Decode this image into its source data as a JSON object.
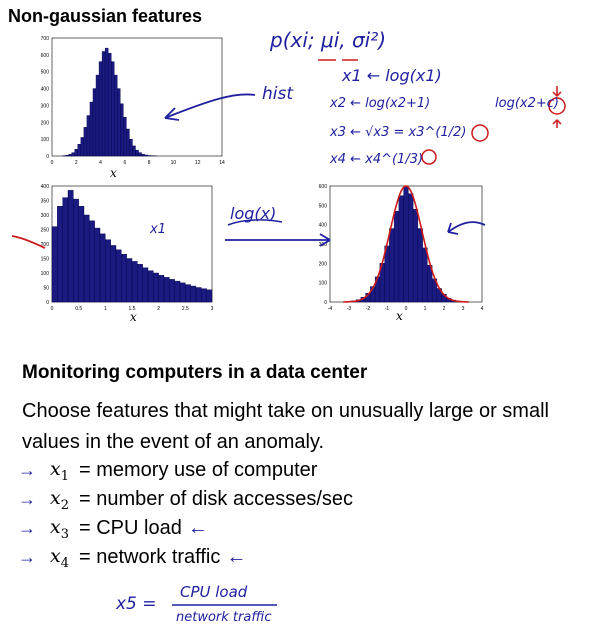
{
  "title": "Non-gaussian features",
  "charts": {
    "top": {
      "xlabel": "x",
      "yticks": [
        "700",
        "600",
        "500",
        "400",
        "300",
        "200",
        "100",
        "0"
      ],
      "xticks": [
        "0",
        "2",
        "4",
        "6",
        "8",
        "10",
        "12",
        "14"
      ]
    },
    "left": {
      "xlabel": "x",
      "yticks": [
        "400",
        "350",
        "300",
        "250",
        "200",
        "150",
        "100",
        "50",
        "0"
      ],
      "xticks": [
        "0",
        "0.5",
        "1",
        "1.5",
        "2",
        "2.5",
        "3"
      ]
    },
    "right": {
      "xlabel": "x",
      "yticks": [
        "600",
        "500",
        "400",
        "300",
        "200",
        "100",
        "0"
      ],
      "xticks": [
        "-4",
        "-3",
        "-2",
        "-1",
        "0",
        "1",
        "2",
        "3",
        "4"
      ]
    }
  },
  "chart_data": [
    {
      "type": "bar",
      "xlabel": "x",
      "xlim": [
        0,
        14
      ],
      "ylim": [
        0,
        700
      ],
      "x": [
        1.0,
        1.25,
        1.5,
        1.75,
        2.0,
        2.25,
        2.5,
        2.75,
        3.0,
        3.25,
        3.5,
        3.75,
        4.0,
        4.25,
        4.5,
        4.75,
        5.0,
        5.25,
        5.5,
        5.75,
        6.0,
        6.25,
        6.5,
        6.75,
        7.0,
        7.25,
        7.5,
        7.75,
        8.0,
        8.25,
        8.5
      ],
      "values": [
        2,
        5,
        10,
        20,
        40,
        70,
        110,
        170,
        240,
        320,
        400,
        480,
        560,
        620,
        640,
        610,
        560,
        480,
        400,
        310,
        230,
        160,
        100,
        60,
        35,
        20,
        10,
        6,
        3,
        2,
        1
      ]
    },
    {
      "type": "bar",
      "xlabel": "x",
      "xlim": [
        0,
        3
      ],
      "ylim": [
        0,
        400
      ],
      "x": [
        0.05,
        0.15,
        0.25,
        0.35,
        0.45,
        0.55,
        0.65,
        0.75,
        0.85,
        0.95,
        1.05,
        1.15,
        1.25,
        1.35,
        1.45,
        1.55,
        1.65,
        1.75,
        1.85,
        1.95,
        2.05,
        2.15,
        2.25,
        2.35,
        2.45,
        2.55,
        2.65,
        2.75,
        2.85,
        2.95
      ],
      "values": [
        260,
        330,
        360,
        385,
        355,
        330,
        300,
        280,
        255,
        235,
        215,
        195,
        180,
        165,
        150,
        140,
        130,
        118,
        108,
        100,
        92,
        85,
        78,
        72,
        66,
        60,
        55,
        50,
        46,
        42
      ]
    },
    {
      "type": "bar",
      "xlabel": "x",
      "xlim": [
        -4,
        4
      ],
      "ylim": [
        0,
        600
      ],
      "x": [
        -3.0,
        -2.75,
        -2.5,
        -2.25,
        -2.0,
        -1.75,
        -1.5,
        -1.25,
        -1.0,
        -0.75,
        -0.5,
        -0.25,
        0.0,
        0.25,
        0.5,
        0.75,
        1.0,
        1.25,
        1.5,
        1.75,
        2.0,
        2.25,
        2.5,
        2.75,
        3.0
      ],
      "values": [
        3,
        6,
        12,
        25,
        45,
        80,
        130,
        200,
        290,
        380,
        470,
        550,
        600,
        560,
        480,
        380,
        280,
        190,
        120,
        70,
        40,
        20,
        10,
        5,
        2
      ]
    }
  ],
  "annotations": {
    "model": "p(xi; μi, σi²)",
    "rule1": "x1 ← log(x1)",
    "rule2": "x2 ← log(x2+1)",
    "rule2_alt": "log(x2+c)",
    "rule3": "x3 ← √x3 = x3^(1/2)",
    "rule4": "x4 ← x4^(1/3)",
    "hist": "hist",
    "x1_note": "x1",
    "log_x": "log(x)"
  },
  "section_title": "Monitoring computers in a data center",
  "paragraph": "Choose features that might take on unusually large or small values in the event of an anomaly.",
  "features": [
    {
      "var": "x",
      "sub": "1",
      "desc": "= memory use of computer",
      "extra": ""
    },
    {
      "var": "x",
      "sub": "2",
      "desc": "= number of disk accesses/sec",
      "extra": ""
    },
    {
      "var": "x",
      "sub": "3",
      "desc": "= CPU load",
      "extra": "←"
    },
    {
      "var": "x",
      "sub": "4",
      "desc": "= network traffic",
      "extra": "←"
    }
  ],
  "x5": {
    "lhs": "x5 =",
    "numerator": "CPU load",
    "denominator": "network traffic"
  },
  "colors": {
    "bar": "#1a1a80",
    "bar_edge": "#000044",
    "fit_curve": "#cc1a1a",
    "ink_blue": "#2020a0",
    "ink_red": "#cc1a1a"
  }
}
